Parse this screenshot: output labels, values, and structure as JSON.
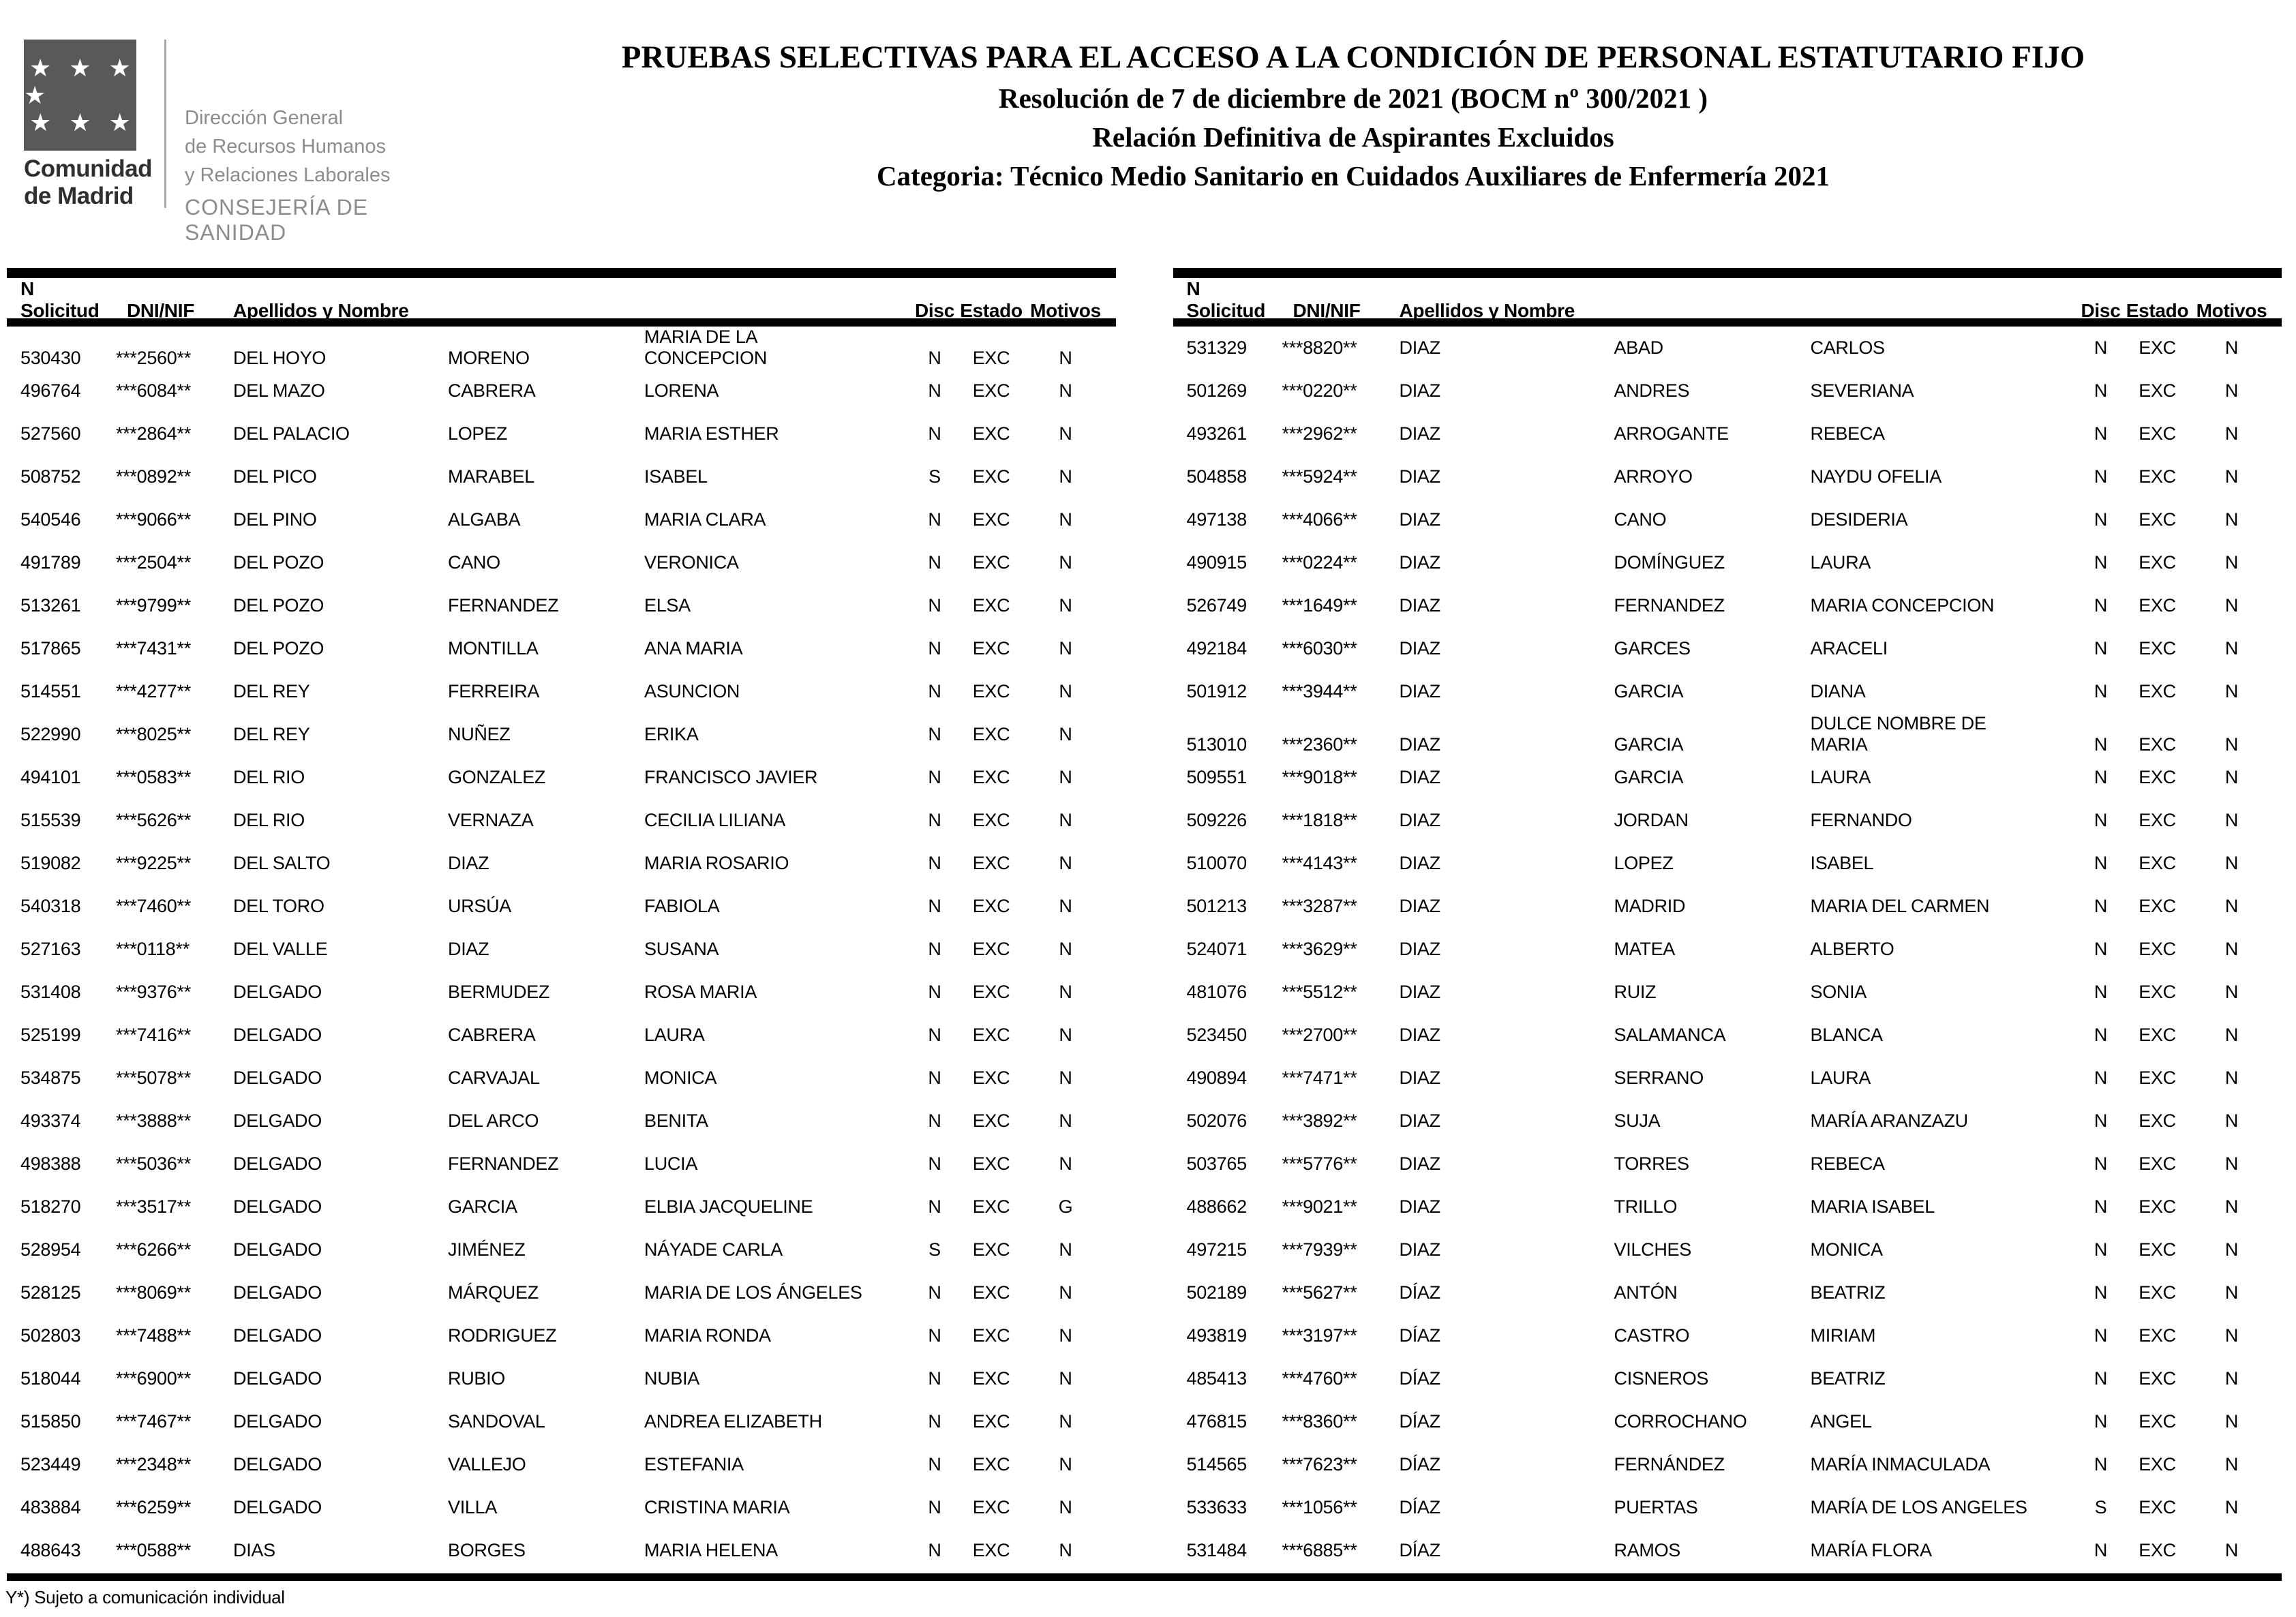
{
  "colors": {
    "bar": "#000000",
    "flag": "#58595b",
    "muted_gray": "#8c8c8c"
  },
  "logo": {
    "stars_row1": "★ ★ ★ ★",
    "stars_row2": "★ ★ ★",
    "region_line1": "Comunidad",
    "region_line2": "de Madrid",
    "dept_line1": "Dirección General",
    "dept_line2": "de Recursos Humanos",
    "dept_line3": "y Relaciones Laborales",
    "consejeria": "CONSEJERÍA DE SANIDAD"
  },
  "header": {
    "title_line1": "PRUEBAS SELECTIVAS PARA EL ACCESO A LA CONDICIÓN DE PERSONAL ESTATUTARIO FIJO",
    "title_line2": "Resolución de 7 de diciembre de 2021 (BOCM nº 300/2021 )",
    "title_line3": "Relación Definitiva de Aspirantes Excluidos",
    "title_line4": "Categoria: Técnico Medio Sanitario en Cuidados Auxiliares de Enfermería 2021"
  },
  "columns": {
    "solicitud": "N Solicitud",
    "dni": "DNI/NIF",
    "apellidos": "Apellidos y Nombre",
    "disc": "Disc",
    "estado": "Estado",
    "motivos": "Motivos"
  },
  "left_table": {
    "rows": [
      [
        "530430",
        "***2560**",
        "DEL HOYO",
        "MORENO",
        "MARIA DE LA\nCONCEPCION",
        "N",
        "EXC",
        "N"
      ],
      [
        "496764",
        "***6084**",
        "DEL MAZO",
        "CABRERA",
        "LORENA",
        "N",
        "EXC",
        "N"
      ],
      [
        "527560",
        "***2864**",
        "DEL PALACIO",
        "LOPEZ",
        "MARIA ESTHER",
        "N",
        "EXC",
        "N"
      ],
      [
        "508752",
        "***0892**",
        "DEL PICO",
        "MARABEL",
        "ISABEL",
        "S",
        "EXC",
        "N"
      ],
      [
        "540546",
        "***9066**",
        "DEL PINO",
        "ALGABA",
        "MARIA CLARA",
        "N",
        "EXC",
        "N"
      ],
      [
        "491789",
        "***2504**",
        "DEL POZO",
        "CANO",
        "VERONICA",
        "N",
        "EXC",
        "N"
      ],
      [
        "513261",
        "***9799**",
        "DEL POZO",
        "FERNANDEZ",
        "ELSA",
        "N",
        "EXC",
        "N"
      ],
      [
        "517865",
        "***7431**",
        "DEL POZO",
        "MONTILLA",
        "ANA MARIA",
        "N",
        "EXC",
        "N"
      ],
      [
        "514551",
        "***4277**",
        "DEL REY",
        "FERREIRA",
        "ASUNCION",
        "N",
        "EXC",
        "N"
      ],
      [
        "522990",
        "***8025**",
        "DEL REY",
        "NUÑEZ",
        "ERIKA",
        "N",
        "EXC",
        "N"
      ],
      [
        "494101",
        "***0583**",
        "DEL RIO",
        "GONZALEZ",
        "FRANCISCO JAVIER",
        "N",
        "EXC",
        "N"
      ],
      [
        "515539",
        "***5626**",
        "DEL RIO",
        "VERNAZA",
        "CECILIA LILIANA",
        "N",
        "EXC",
        "N"
      ],
      [
        "519082",
        "***9225**",
        "DEL SALTO",
        "DIAZ",
        "MARIA ROSARIO",
        "N",
        "EXC",
        "N"
      ],
      [
        "540318",
        "***7460**",
        "DEL TORO",
        "URSÚA",
        "FABIOLA",
        "N",
        "EXC",
        "N"
      ],
      [
        "527163",
        "***0118**",
        "DEL VALLE",
        "DIAZ",
        "SUSANA",
        "N",
        "EXC",
        "N"
      ],
      [
        "531408",
        "***9376**",
        "DELGADO",
        "BERMUDEZ",
        "ROSA MARIA",
        "N",
        "EXC",
        "N"
      ],
      [
        "525199",
        "***7416**",
        "DELGADO",
        "CABRERA",
        "LAURA",
        "N",
        "EXC",
        "N"
      ],
      [
        "534875",
        "***5078**",
        "DELGADO",
        "CARVAJAL",
        "MONICA",
        "N",
        "EXC",
        "N"
      ],
      [
        "493374",
        "***3888**",
        "DELGADO",
        "DEL ARCO",
        "BENITA",
        "N",
        "EXC",
        "N"
      ],
      [
        "498388",
        "***5036**",
        "DELGADO",
        "FERNANDEZ",
        "LUCIA",
        "N",
        "EXC",
        "N"
      ],
      [
        "518270",
        "***3517**",
        "DELGADO",
        "GARCIA",
        "ELBIA JACQUELINE",
        "N",
        "EXC",
        "G"
      ],
      [
        "528954",
        "***6266**",
        "DELGADO",
        "JIMÉNEZ",
        "NÁYADE CARLA",
        "S",
        "EXC",
        "N"
      ],
      [
        "528125",
        "***8069**",
        "DELGADO",
        "MÁRQUEZ",
        "MARIA DE LOS ÁNGELES",
        "N",
        "EXC",
        "N"
      ],
      [
        "502803",
        "***7488**",
        "DELGADO",
        "RODRIGUEZ",
        "MARIA RONDA",
        "N",
        "EXC",
        "N"
      ],
      [
        "518044",
        "***6900**",
        "DELGADO",
        "RUBIO",
        "NUBIA",
        "N",
        "EXC",
        "N"
      ],
      [
        "515850",
        "***7467**",
        "DELGADO",
        "SANDOVAL",
        "ANDREA ELIZABETH",
        "N",
        "EXC",
        "N"
      ],
      [
        "523449",
        "***2348**",
        "DELGADO",
        "VALLEJO",
        "ESTEFANIA",
        "N",
        "EXC",
        "N"
      ],
      [
        "483884",
        "***6259**",
        "DELGADO",
        "VILLA",
        "CRISTINA MARIA",
        "N",
        "EXC",
        "N"
      ],
      [
        "488643",
        "***0588**",
        "DIAS",
        "BORGES",
        "MARIA HELENA",
        "N",
        "EXC",
        "N"
      ]
    ]
  },
  "right_table": {
    "rows": [
      [
        "531329",
        "***8820**",
        "DIAZ",
        "ABAD",
        "CARLOS",
        "N",
        "EXC",
        "N"
      ],
      [
        "501269",
        "***0220**",
        "DIAZ",
        "ANDRES",
        "SEVERIANA",
        "N",
        "EXC",
        "N"
      ],
      [
        "493261",
        "***2962**",
        "DIAZ",
        "ARROGANTE",
        "REBECA",
        "N",
        "EXC",
        "N"
      ],
      [
        "504858",
        "***5924**",
        "DIAZ",
        "ARROYO",
        "NAYDU OFELIA",
        "N",
        "EXC",
        "N"
      ],
      [
        "497138",
        "***4066**",
        "DIAZ",
        "CANO",
        "DESIDERIA",
        "N",
        "EXC",
        "N"
      ],
      [
        "490915",
        "***0224**",
        "DIAZ",
        "DOMÍNGUEZ",
        "LAURA",
        "N",
        "EXC",
        "N"
      ],
      [
        "526749",
        "***1649**",
        "DIAZ",
        "FERNANDEZ",
        "MARIA CONCEPCION",
        "N",
        "EXC",
        "N"
      ],
      [
        "492184",
        "***6030**",
        "DIAZ",
        "GARCES",
        "ARACELI",
        "N",
        "EXC",
        "N"
      ],
      [
        "501912",
        "***3944**",
        "DIAZ",
        "GARCIA",
        "DIANA",
        "N",
        "EXC",
        "N"
      ],
      [
        "513010",
        "***2360**",
        "DIAZ",
        "GARCIA",
        "DULCE NOMBRE DE\nMARIA",
        "N",
        "EXC",
        "N"
      ],
      [
        "509551",
        "***9018**",
        "DIAZ",
        "GARCIA",
        "LAURA",
        "N",
        "EXC",
        "N"
      ],
      [
        "509226",
        "***1818**",
        "DIAZ",
        "JORDAN",
        "FERNANDO",
        "N",
        "EXC",
        "N"
      ],
      [
        "510070",
        "***4143**",
        "DIAZ",
        "LOPEZ",
        "ISABEL",
        "N",
        "EXC",
        "N"
      ],
      [
        "501213",
        "***3287**",
        "DIAZ",
        "MADRID",
        "MARIA DEL CARMEN",
        "N",
        "EXC",
        "N"
      ],
      [
        "524071",
        "***3629**",
        "DIAZ",
        "MATEA",
        "ALBERTO",
        "N",
        "EXC",
        "N"
      ],
      [
        "481076",
        "***5512**",
        "DIAZ",
        "RUIZ",
        "SONIA",
        "N",
        "EXC",
        "N"
      ],
      [
        "523450",
        "***2700**",
        "DIAZ",
        "SALAMANCA",
        "BLANCA",
        "N",
        "EXC",
        "N"
      ],
      [
        "490894",
        "***7471**",
        "DIAZ",
        "SERRANO",
        "LAURA",
        "N",
        "EXC",
        "N"
      ],
      [
        "502076",
        "***3892**",
        "DIAZ",
        "SUJA",
        "MARÍA ARANZAZU",
        "N",
        "EXC",
        "N"
      ],
      [
        "503765",
        "***5776**",
        "DIAZ",
        "TORRES",
        "REBECA",
        "N",
        "EXC",
        "N"
      ],
      [
        "488662",
        "***9021**",
        "DIAZ",
        "TRILLO",
        "MARIA ISABEL",
        "N",
        "EXC",
        "N"
      ],
      [
        "497215",
        "***7939**",
        "DIAZ",
        "VILCHES",
        "MONICA",
        "N",
        "EXC",
        "N"
      ],
      [
        "502189",
        "***5627**",
        "DÍAZ",
        "ANTÓN",
        "BEATRIZ",
        "N",
        "EXC",
        "N"
      ],
      [
        "493819",
        "***3197**",
        "DÍAZ",
        "CASTRO",
        "MIRIAM",
        "N",
        "EXC",
        "N"
      ],
      [
        "485413",
        "***4760**",
        "DÍAZ",
        "CISNEROS",
        "BEATRIZ",
        "N",
        "EXC",
        "N"
      ],
      [
        "476815",
        "***8360**",
        "DÍAZ",
        "CORROCHANO",
        "ANGEL",
        "N",
        "EXC",
        "N"
      ],
      [
        "514565",
        "***7623**",
        "DÍAZ",
        "FERNÁNDEZ",
        "MARÍA INMACULADA",
        "N",
        "EXC",
        "N"
      ],
      [
        "533633",
        "***1056**",
        "DÍAZ",
        "PUERTAS",
        "MARÍA DE LOS ANGELES",
        "S",
        "EXC",
        "N"
      ],
      [
        "531484",
        "***6885**",
        "DÍAZ",
        "RAMOS",
        "MARÍA FLORA",
        "N",
        "EXC",
        "N"
      ]
    ]
  },
  "footer": {
    "note": "Y*) Sujeto a comunicación individual"
  }
}
